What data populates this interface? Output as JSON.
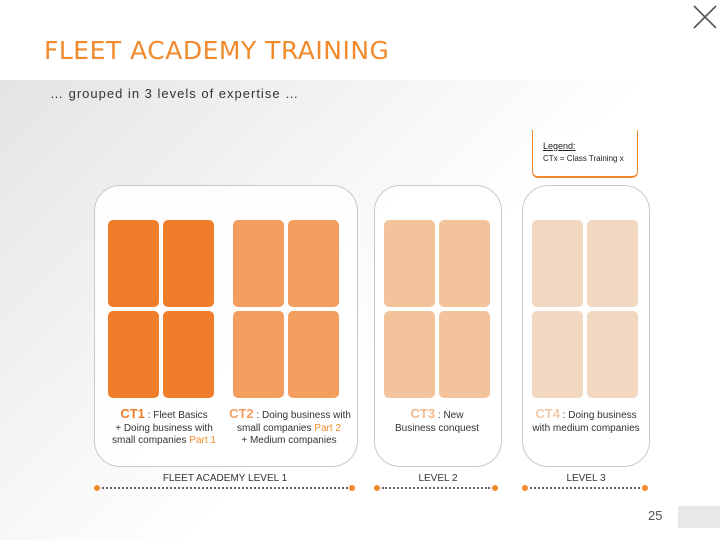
{
  "header": {
    "title": "FLEET ACADEMY TRAINING",
    "subtitle": "… grouped in 3 levels of expertise …"
  },
  "legend": {
    "title": "Legend:",
    "text": "CTx = Class Training x"
  },
  "courses": [
    {
      "code": "CT1",
      "name": ": Fleet Basics",
      "desc1": "+ Doing business with",
      "desc2_pre": "small companies ",
      "desc2_hl": "Part 1",
      "color": "#f07d2a"
    },
    {
      "code": "CT2",
      "name": ": Doing business with",
      "desc1_pre": "small companies ",
      "desc1_hl": "Part 2",
      "desc2": "+ Medium companies",
      "color": "#f39e5f"
    },
    {
      "code": "CT3",
      "name": ": New",
      "desc1": "Business conquest",
      "color": "#f3c39c"
    },
    {
      "code": "CT4",
      "name": ": Doing business",
      "desc1": "with medium companies",
      "color": "#f2d7c1"
    }
  ],
  "levels": [
    {
      "label": "FLEET ACADEMY LEVEL 1"
    },
    {
      "label": "LEVEL 2"
    },
    {
      "label": "LEVEL 3"
    }
  ],
  "footer": {
    "page": "25"
  },
  "colors": {
    "accent": "#f08a2c"
  }
}
